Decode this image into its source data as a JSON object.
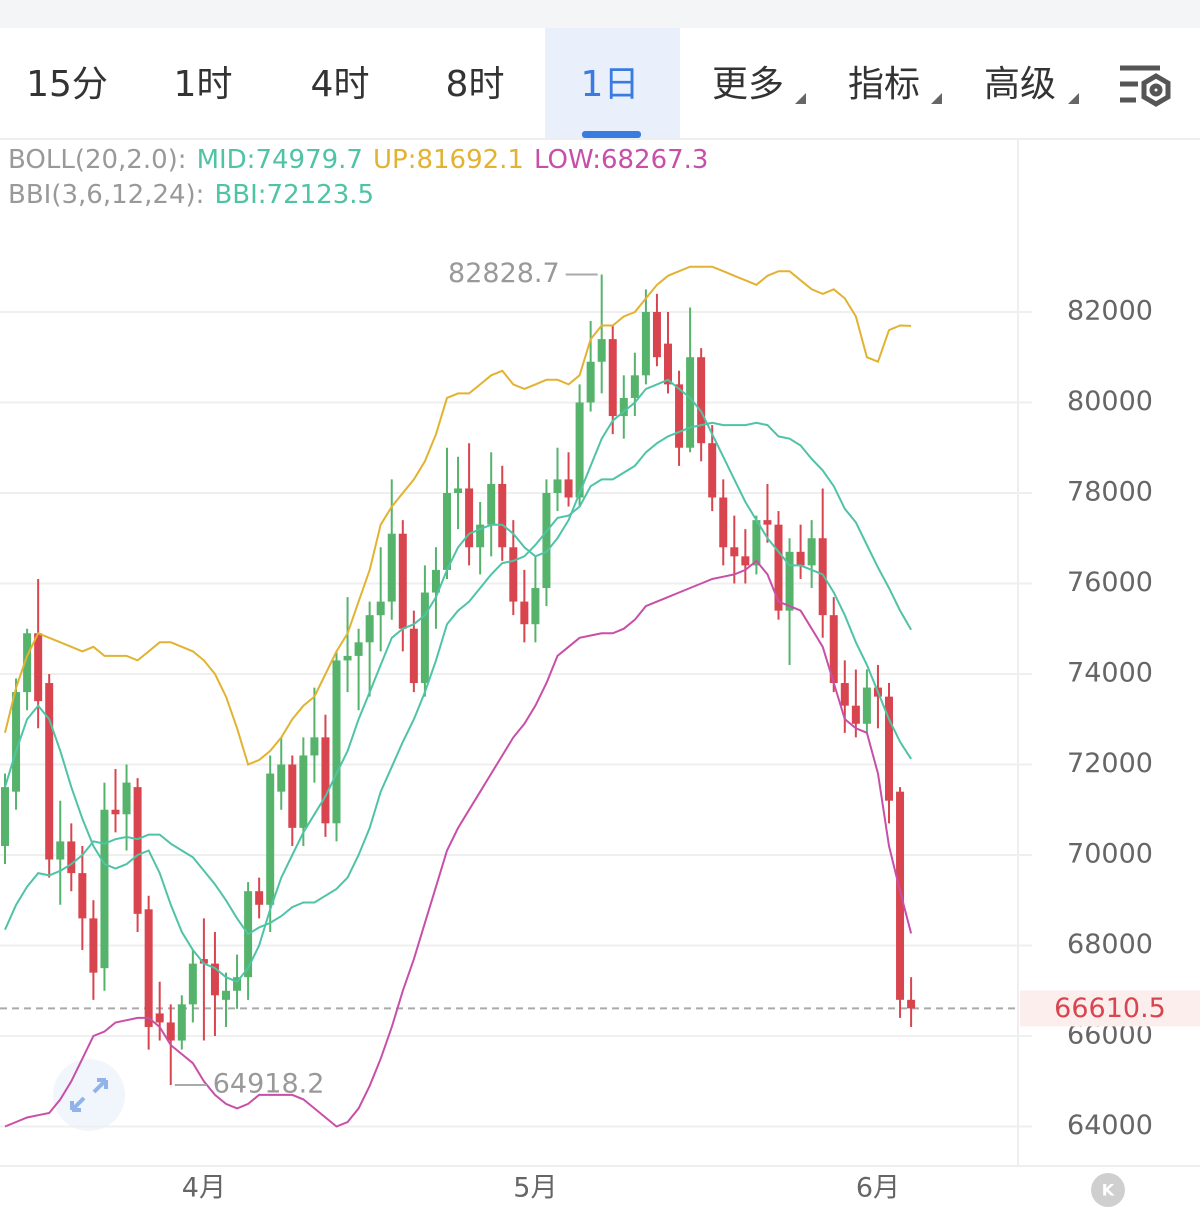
{
  "tabs": [
    "15分",
    "1时",
    "4时",
    "8时",
    "1日",
    "更多",
    "指标",
    "高级"
  ],
  "active_tab": 4,
  "chart_data": {
    "type": "candlestick",
    "categories": [
      null,
      null,
      null,
      null,
      null,
      null,
      null,
      null,
      null,
      null,
      null,
      null,
      null,
      null,
      null,
      null,
      null,
      null,
      "4月",
      null,
      null,
      null,
      null,
      null,
      null,
      null,
      null,
      null,
      null,
      null,
      null,
      null,
      null,
      null,
      null,
      null,
      null,
      null,
      null,
      null,
      null,
      null,
      null,
      null,
      null,
      null,
      null,
      null,
      "5月",
      null,
      null,
      null,
      null,
      null,
      null,
      null,
      null,
      null,
      null,
      null,
      null,
      null,
      null,
      null,
      null,
      null,
      null,
      null,
      null,
      null,
      null,
      null,
      null,
      null,
      null,
      null,
      null,
      null,
      null,
      "6月",
      null,
      null,
      null
    ],
    "open": [
      70200,
      71400,
      73600,
      74900,
      73800,
      69900,
      70300,
      69600,
      68600,
      67500,
      71000,
      70900,
      71500,
      68800,
      66500,
      66300,
      65900,
      66700,
      67700,
      67600,
      66800,
      67000,
      67300,
      69200,
      68900,
      71400,
      72000,
      70600,
      72200,
      72600,
      70700,
      74300,
      74400,
      74700,
      75300,
      75600,
      77100,
      75000,
      73800,
      75800,
      76300,
      78000,
      78100,
      76800,
      77300,
      78200,
      76800,
      75600,
      75100,
      75900,
      78000,
      78300,
      77900,
      80000,
      80900,
      81400,
      79700,
      80100,
      80600,
      82000,
      81300,
      80400,
      79000,
      81000,
      79100,
      77900,
      76800,
      76600,
      76400,
      77400,
      77300,
      75400,
      76700,
      76400,
      77000,
      75300,
      73800,
      73300,
      72900,
      73700,
      73500,
      71400,
      66800
    ],
    "high": [
      71800,
      73900,
      75000,
      76100,
      74000,
      71200,
      70700,
      70200,
      69000,
      71600,
      71900,
      72000,
      71700,
      69100,
      67200,
      66700,
      66900,
      67900,
      68600,
      68300,
      67400,
      67800,
      69400,
      69500,
      72200,
      72600,
      72200,
      72600,
      73700,
      73100,
      74500,
      75700,
      75000,
      75600,
      76800,
      78300,
      77400,
      75400,
      76400,
      76800,
      79000,
      78800,
      79100,
      77800,
      78900,
      78600,
      77400,
      76300,
      76600,
      78300,
      79000,
      78900,
      80400,
      81800,
      82828.7,
      81700,
      80600,
      81100,
      82500,
      82400,
      82000,
      80700,
      82100,
      81200,
      79500,
      78300,
      77500,
      77200,
      77500,
      78200,
      77600,
      77000,
      77300,
      77400,
      78100,
      75700,
      74300,
      74100,
      74100,
      74200,
      73800,
      71500,
      67300
    ],
    "low": [
      69800,
      71000,
      73200,
      72800,
      69500,
      68900,
      69200,
      67900,
      66800,
      67000,
      70500,
      70100,
      68300,
      65700,
      65900,
      64918.2,
      65700,
      66300,
      65900,
      66000,
      66200,
      66600,
      66800,
      68600,
      68300,
      71000,
      70200,
      70200,
      71600,
      70400,
      70300,
      73600,
      73200,
      73500,
      74500,
      75200,
      74500,
      73600,
      73500,
      75000,
      76100,
      77200,
      76400,
      76200,
      76600,
      76500,
      75300,
      74700,
      74700,
      75500,
      77600,
      77700,
      77700,
      79800,
      80200,
      79300,
      79200,
      79700,
      80400,
      80800,
      80200,
      78600,
      78900,
      78700,
      77600,
      76400,
      76000,
      76000,
      76200,
      76900,
      75200,
      74200,
      76100,
      75900,
      74800,
      73600,
      72700,
      72600,
      72700,
      72800,
      70700,
      66400,
      66200
    ],
    "close": [
      71500,
      73600,
      74900,
      73400,
      69900,
      70300,
      69600,
      68600,
      67400,
      71000,
      70900,
      71600,
      68700,
      66200,
      66300,
      65900,
      66700,
      67600,
      67600,
      66900,
      67000,
      67300,
      69200,
      68900,
      71800,
      72000,
      70600,
      72200,
      72600,
      70700,
      74300,
      74400,
      74700,
      75300,
      75600,
      77100,
      75000,
      73800,
      75800,
      76300,
      78000,
      78100,
      76800,
      77300,
      78200,
      76800,
      75600,
      75100,
      75900,
      78000,
      78300,
      77900,
      80000,
      80900,
      81400,
      79700,
      80100,
      80600,
      82000,
      81000,
      80400,
      79000,
      81000,
      79100,
      77900,
      76800,
      76600,
      76400,
      77400,
      77300,
      75400,
      76700,
      76400,
      77000,
      75300,
      73800,
      73300,
      72900,
      73700,
      73500,
      71200,
      66800,
      66610.5
    ],
    "rise_color": "#55b36b",
    "fall_color": "#d8454f",
    "indicators": [
      {
        "label": "BOLL(20,2.0):",
        "items": [
          {
            "name": "MID:",
            "value": 74979.7,
            "color": "#4fc3a6",
            "values": [
              68350,
              68900,
              69300,
              69600,
              69550,
              69650,
              69800,
              70000,
              70300,
              70250,
              70350,
              70400,
              70350,
              70450,
              70450,
              70250,
              70100,
              69950,
              69650,
              69350,
              69000,
              68600,
              68250,
              68400,
              68500,
              68650,
              68850,
              68950,
              68950,
              69100,
              69250,
              69500,
              70000,
              70600,
              71400,
              71950,
              72500,
              73000,
              73600,
              74300,
              75100,
              75400,
              75600,
              75900,
              76200,
              76450,
              76500,
              76600,
              76850,
              77150,
              77450,
              77500,
              77700,
              78150,
              78300,
              78300,
              78450,
              78600,
              78900,
              79100,
              79250,
              79350,
              79450,
              79500,
              79550,
              79500,
              79500,
              79500,
              79550,
              79500,
              79250,
              79200,
              79050,
              78750,
              78500,
              78150,
              77650,
              77350,
              76850,
              76350,
              75900,
              75400,
              74979.7
            ]
          },
          {
            "name": "UP:",
            "value": 81692.1,
            "color": "#e2b232",
            "values": [
              72700,
              73700,
              74400,
              74900,
              74800,
              74700,
              74600,
              74500,
              74600,
              74400,
              74400,
              74400,
              74300,
              74500,
              74700,
              74700,
              74600,
              74500,
              74300,
              74000,
              73500,
              72800,
              72000,
              72100,
              72300,
              72600,
              73000,
              73300,
              73500,
              74000,
              74500,
              74900,
              75600,
              76300,
              77300,
              77700,
              78000,
              78300,
              78700,
              79300,
              80100,
              80200,
              80200,
              80400,
              80600,
              80700,
              80400,
              80300,
              80400,
              80500,
              80500,
              80400,
              80600,
              81400,
              81700,
              81700,
              81900,
              82000,
              82300,
              82600,
              82800,
              82900,
              83000,
              83000,
              83000,
              82900,
              82800,
              82700,
              82600,
              82800,
              82900,
              82900,
              82700,
              82500,
              82400,
              82500,
              82300,
              81900,
              81000,
              80900,
              81600,
              81700,
              81692.1
            ]
          },
          {
            "name": "LOW:",
            "value": 68267.3,
            "color": "#c84fa8",
            "values": [
              64000,
              64100,
              64200,
              64250,
              64300,
              64600,
              65000,
              65500,
              66000,
              66100,
              66300,
              66350,
              66400,
              66400,
              66200,
              65800,
              65600,
              65400,
              65000,
              64700,
              64500,
              64400,
              64500,
              64700,
              64700,
              64700,
              64700,
              64600,
              64400,
              64200,
              64000,
              64100,
              64400,
              64900,
              65500,
              66200,
              67000,
              67700,
              68500,
              69300,
              70100,
              70600,
              71000,
              71400,
              71800,
              72200,
              72600,
              72900,
              73300,
              73800,
              74400,
              74600,
              74800,
              74850,
              74900,
              74900,
              75000,
              75200,
              75500,
              75600,
              75700,
              75800,
              75900,
              76000,
              76100,
              76150,
              76200,
              76300,
              76500,
              76200,
              75600,
              75500,
              75400,
              75000,
              74600,
              73800,
              73000,
              72800,
              72700,
              71800,
              70200,
              69200,
              68267.3
            ]
          }
        ]
      },
      {
        "label": "BBI(3,6,12,24):",
        "items": [
          {
            "name": "BBI:",
            "value": 72123.5,
            "color": "#4fc3a6",
            "values": [
              71500,
              72300,
              73000,
              73300,
              73000,
              72300,
              71500,
              70800,
              70200,
              69800,
              69700,
              69800,
              70000,
              70100,
              69600,
              68900,
              68300,
              67900,
              67600,
              67500,
              67300,
              67200,
              67500,
              68000,
              68800,
              69500,
              70000,
              70500,
              70900,
              71300,
              71800,
              72300,
              73000,
              73600,
              74200,
              74800,
              75000,
              75100,
              75300,
              75700,
              76300,
              76800,
              77100,
              77200,
              77300,
              77300,
              77100,
              76800,
              76600,
              76700,
              77000,
              77400,
              78000,
              78600,
              79200,
              79600,
              79800,
              80000,
              80300,
              80400,
              80500,
              80300,
              80100,
              79800,
              79300,
              78800,
              78300,
              77800,
              77400,
              77000,
              76700,
              76400,
              76400,
              76300,
              76200,
              75800,
              75300,
              74700,
              74200,
              73600,
              73000,
              72500,
              72123.5
            ]
          }
        ]
      }
    ],
    "annotations": [
      82828.7,
      64918.2
    ],
    "last_price": 66610.5,
    "ylim": [
      63150,
      85800
    ],
    "yticks": [
      64000,
      66000,
      68000,
      70000,
      72000,
      74000,
      76000,
      78000,
      80000,
      82000
    ],
    "grid": true
  }
}
